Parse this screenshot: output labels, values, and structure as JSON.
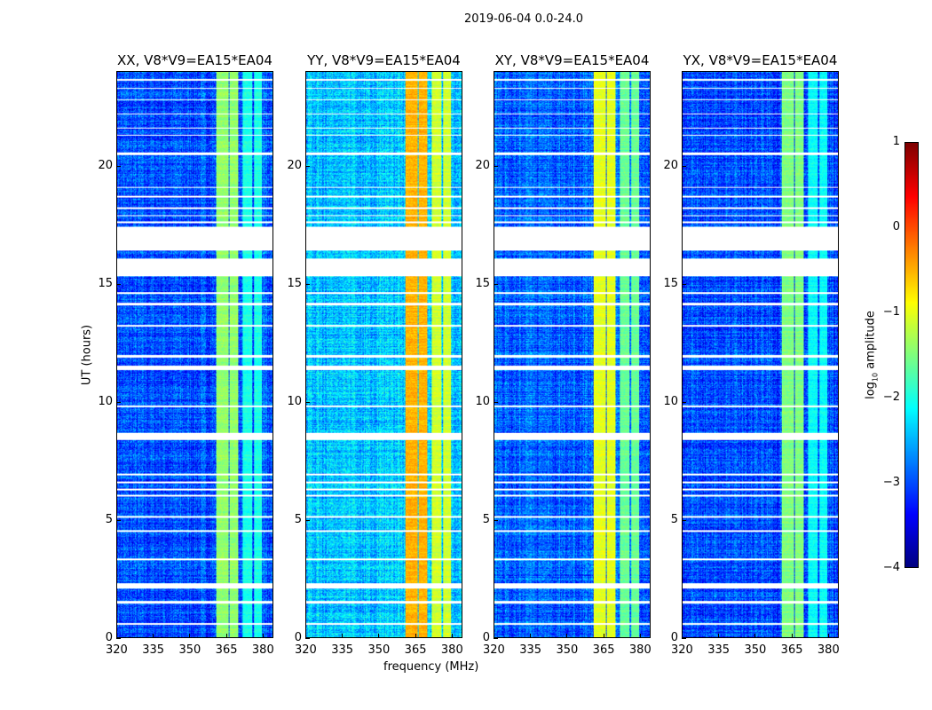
{
  "chart_data": {
    "type": "heatmap",
    "title": "2019-06-04 0.0-24.0",
    "xlabel": "frequency (MHz)",
    "ylabel": "UT (hours)",
    "xlim": [
      320,
      384.4
    ],
    "ylim": [
      0,
      24
    ],
    "xticks": [
      320,
      335,
      350,
      365,
      380
    ],
    "yticks": [
      0,
      5,
      10,
      15,
      20
    ],
    "colorbar": {
      "label_prefix": "log",
      "label_sub": "10",
      "label_suffix": " amplitude",
      "range": [
        -4,
        1
      ],
      "ticks": [
        -4,
        -3,
        -2,
        -1,
        0,
        1
      ],
      "colormap": "jet"
    },
    "panels": [
      {
        "title": "XX, V8*V9=EA15*EA04",
        "background_level": -3.0,
        "band_level": -1.4
      },
      {
        "title": "YY, V8*V9=EA15*EA04",
        "background_level": -2.4,
        "band_level": -0.5
      },
      {
        "title": "XY, V8*V9=EA15*EA04",
        "background_level": -2.9,
        "band_level": -1.0
      },
      {
        "title": "YX, V8*V9=EA15*EA04",
        "background_level": -3.0,
        "band_level": -1.5
      }
    ],
    "bright_bands_mhz": [
      [
        361,
        366
      ],
      [
        366.5,
        370
      ],
      [
        372,
        376
      ],
      [
        376.5,
        380
      ]
    ],
    "flagged_hours": [
      [
        0.55,
        0.62
      ],
      [
        1.45,
        1.55
      ],
      [
        2.1,
        2.3
      ],
      [
        3.3,
        3.36
      ],
      [
        4.5,
        4.58
      ],
      [
        5.1,
        5.15
      ],
      [
        6.0,
        6.08
      ],
      [
        6.25,
        6.33
      ],
      [
        6.55,
        6.62
      ],
      [
        6.9,
        6.95
      ],
      [
        8.4,
        8.7
      ],
      [
        9.8,
        9.86
      ],
      [
        11.35,
        11.55
      ],
      [
        11.9,
        12.0
      ],
      [
        13.2,
        13.26
      ],
      [
        14.1,
        14.2
      ],
      [
        14.6,
        14.66
      ],
      [
        15.35,
        16.1
      ],
      [
        16.45,
        17.45
      ],
      [
        17.6,
        17.66
      ],
      [
        17.9,
        17.95
      ],
      [
        18.2,
        18.26
      ],
      [
        18.7,
        18.76
      ],
      [
        19.1,
        19.15
      ],
      [
        20.5,
        20.6
      ],
      [
        21.3,
        21.35
      ],
      [
        21.6,
        21.66
      ],
      [
        22.2,
        22.26
      ],
      [
        22.8,
        22.86
      ],
      [
        23.3,
        23.36
      ],
      [
        23.65,
        23.72
      ]
    ]
  }
}
